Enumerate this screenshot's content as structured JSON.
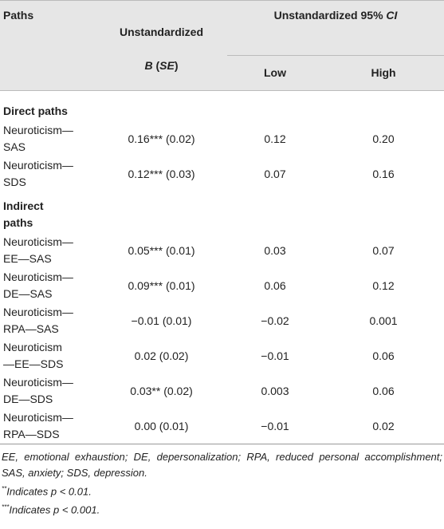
{
  "table": {
    "header": {
      "paths": "Paths",
      "estimate": [
        "Unstandardized",
        "B",
        " (",
        "SE",
        ")"
      ],
      "ci": [
        "Unstandardized 95% ",
        "CI"
      ],
      "low": "Low",
      "high": "High"
    },
    "rows": [
      [
        "Direct paths"
      ],
      [
        "Neuroticism—\nSAS",
        "0.16*** (0.02)",
        "0.12",
        "0.20"
      ],
      [
        "Neuroticism—\nSDS",
        "0.12*** (0.03)",
        "0.07",
        "0.16"
      ],
      [
        "Indirect\npaths"
      ],
      [
        "Neuroticism—\nEE—SAS",
        "0.05*** (0.01)",
        "0.03",
        "0.07"
      ],
      [
        "Neuroticism—\nDE—SAS",
        "0.09*** (0.01)",
        "0.06",
        "0.12"
      ],
      [
        "Neuroticism—\nRPA—SAS",
        "−0.01 (0.01)",
        "−0.02",
        "0.001"
      ],
      [
        "Neuroticism\n—EE—SDS",
        "0.02 (0.02)",
        "−0.01",
        "0.06"
      ],
      [
        "Neuroticism—\nDE—SDS",
        "0.03** (0.02)",
        "0.003",
        "0.06"
      ],
      [
        "Neuroticism—\nRPA—SDS",
        "0.00 (0.01)",
        "−0.01",
        "0.02"
      ]
    ]
  },
  "footnotes": {
    "abbreviations": "EE, emotional exhaustion; DE, depersonalization; RPA, reduced personal accomplishment; SAS, anxiety; SDS, depression.",
    "notes": [
      [
        "**",
        "Indicates p < 0.01."
      ],
      [
        "***",
        "Indicates p < 0.001."
      ]
    ]
  }
}
